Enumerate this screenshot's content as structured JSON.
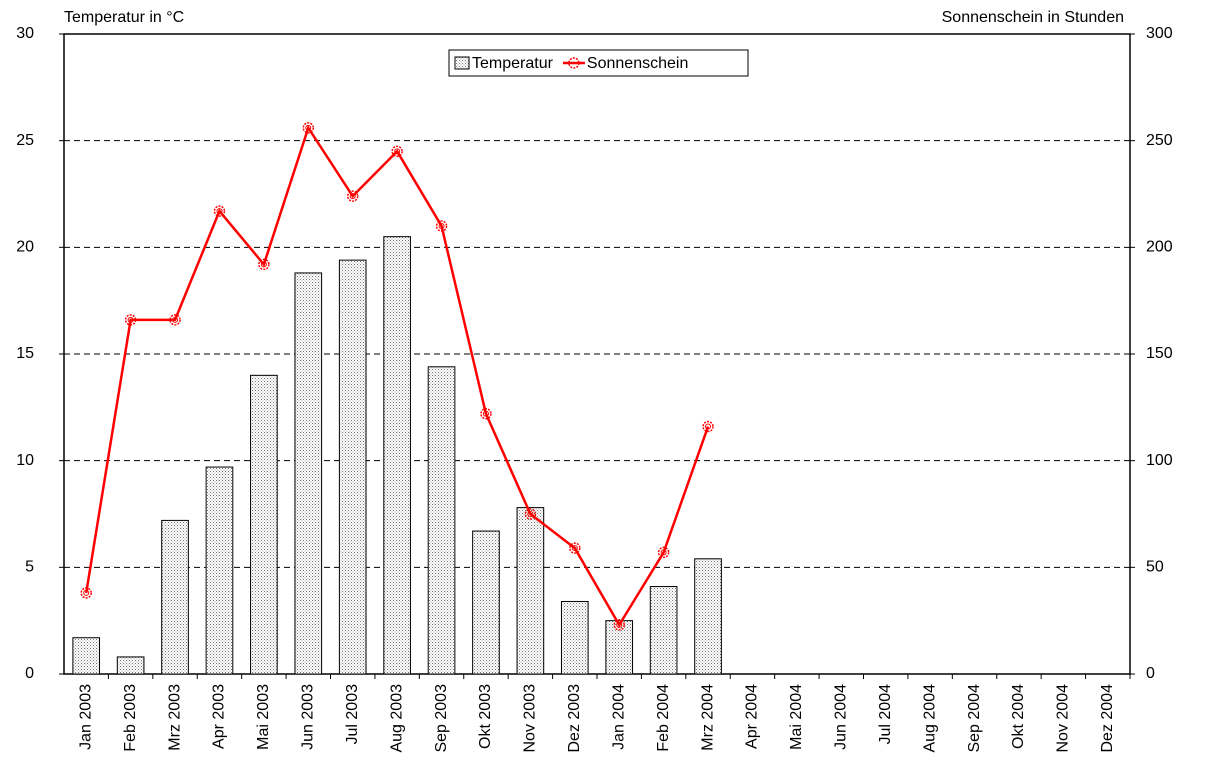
{
  "chart_data": {
    "type": "combo",
    "y_label": "Temperatur in °C",
    "y2_label": "Sonnenschein in Stunden",
    "categories": [
      "Jan 2003",
      "Feb 2003",
      "Mrz 2003",
      "Apr 2003",
      "Mai 2003",
      "Jun 2003",
      "Jul 2003",
      "Aug 2003",
      "Sep 2003",
      "Okt 2003",
      "Nov 2003",
      "Dez 2003",
      "Jan 2004",
      "Feb 2004",
      "Mrz 2004",
      "Apr 2004",
      "Mai 2004",
      "Jun 2004",
      "Jul 2004",
      "Aug 2004",
      "Sep 2004",
      "Okt 2004",
      "Nov 2004",
      "Dez 2004"
    ],
    "series": [
      {
        "name": "Temperatur",
        "type": "bar",
        "color": "#c8c8c8",
        "values": [
          1.7,
          0.8,
          7.2,
          9.7,
          14.0,
          18.8,
          19.4,
          20.5,
          14.4,
          6.7,
          7.8,
          3.4,
          2.5,
          4.1,
          5.4,
          null,
          null,
          null,
          null,
          null,
          null,
          null,
          null,
          null
        ]
      },
      {
        "name": "Sonnenschein",
        "type": "line",
        "color": "#ff0000",
        "axis": "y2",
        "values": [
          38,
          166,
          166,
          217,
          192,
          256,
          224,
          245,
          210,
          122,
          75,
          59,
          23,
          57,
          116,
          null,
          null,
          null,
          null,
          null,
          null,
          null,
          null,
          null
        ]
      }
    ],
    "ylim": [
      0,
      30
    ],
    "yticks": [
      0,
      5,
      10,
      15,
      20,
      25,
      30
    ],
    "y2lim": [
      0,
      300
    ],
    "y2ticks": [
      0,
      50,
      100,
      150,
      200,
      250,
      300
    ],
    "grid": true,
    "legend": "top"
  }
}
